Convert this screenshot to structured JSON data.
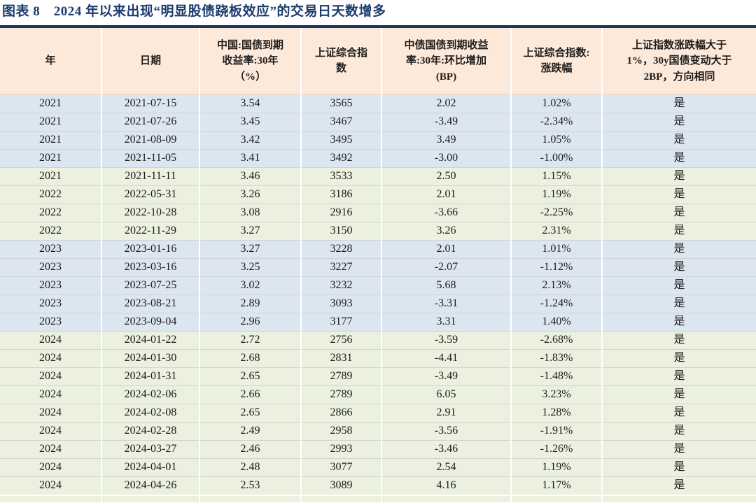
{
  "title": "图表 8　2024 年以来出现“明显股债跷板效应”的交易日天数增多",
  "colors": {
    "title_text": "#1c3c6d",
    "table_top_border": "#17375d",
    "header_bg": "#fde9d9",
    "band_blue_bg": "#dce6f1",
    "band_green_bg": "#ebf1de",
    "gridline": "#d2d2d2",
    "cell_text": "#1c1c1c"
  },
  "table": {
    "columns": [
      {
        "label": "年"
      },
      {
        "label": "日期"
      },
      {
        "label": "中国:国债到期\n收益率:30年\n（%）"
      },
      {
        "label": "上证综合指\n数"
      },
      {
        "label": "中债国债到期收益\n率:30年:环比增加\n(BP)"
      },
      {
        "label": "上证综合指数:\n涨跌幅"
      },
      {
        "label": "上证指数涨跌幅大于\n1%，30y国债变动大于\n2BP，方向相同"
      }
    ],
    "row_bands": [
      "blue",
      "blue",
      "blue",
      "blue",
      "green",
      "green",
      "green",
      "green",
      "blue",
      "blue",
      "blue",
      "blue",
      "blue",
      "green",
      "green",
      "green",
      "green",
      "green",
      "green",
      "green",
      "green",
      "green"
    ]
  },
  "chart_data": {
    "type": "table",
    "title": "图表 8　2024 年以来出现“明显股债跷板效应”的交易日天数增多",
    "columns": [
      "年",
      "日期",
      "中国:国债到期收益率:30年（%）",
      "上证综合指数",
      "中债国债到期收益率:30年:环比增加(BP)",
      "上证综合指数:涨跌幅",
      "上证指数涨跌幅大于1%，30y国债变动大于2BP，方向相同"
    ],
    "rows": [
      [
        "2021",
        "2021-07-15",
        "3.54",
        "3565",
        "2.02",
        "1.02%",
        "是"
      ],
      [
        "2021",
        "2021-07-26",
        "3.45",
        "3467",
        "-3.49",
        "-2.34%",
        "是"
      ],
      [
        "2021",
        "2021-08-09",
        "3.42",
        "3495",
        "3.49",
        "1.05%",
        "是"
      ],
      [
        "2021",
        "2021-11-05",
        "3.41",
        "3492",
        "-3.00",
        "-1.00%",
        "是"
      ],
      [
        "2021",
        "2021-11-11",
        "3.46",
        "3533",
        "2.50",
        "1.15%",
        "是"
      ],
      [
        "2022",
        "2022-05-31",
        "3.26",
        "3186",
        "2.01",
        "1.19%",
        "是"
      ],
      [
        "2022",
        "2022-10-28",
        "3.08",
        "2916",
        "-3.66",
        "-2.25%",
        "是"
      ],
      [
        "2022",
        "2022-11-29",
        "3.27",
        "3150",
        "3.26",
        "2.31%",
        "是"
      ],
      [
        "2023",
        "2023-01-16",
        "3.27",
        "3228",
        "2.01",
        "1.01%",
        "是"
      ],
      [
        "2023",
        "2023-03-16",
        "3.25",
        "3227",
        "-2.07",
        "-1.12%",
        "是"
      ],
      [
        "2023",
        "2023-07-25",
        "3.02",
        "3232",
        "5.68",
        "2.13%",
        "是"
      ],
      [
        "2023",
        "2023-08-21",
        "2.89",
        "3093",
        "-3.31",
        "-1.24%",
        "是"
      ],
      [
        "2023",
        "2023-09-04",
        "2.96",
        "3177",
        "3.31",
        "1.40%",
        "是"
      ],
      [
        "2024",
        "2024-01-22",
        "2.72",
        "2756",
        "-3.59",
        "-2.68%",
        "是"
      ],
      [
        "2024",
        "2024-01-30",
        "2.68",
        "2831",
        "-4.41",
        "-1.83%",
        "是"
      ],
      [
        "2024",
        "2024-01-31",
        "2.65",
        "2789",
        "-3.49",
        "-1.48%",
        "是"
      ],
      [
        "2024",
        "2024-02-06",
        "2.66",
        "2789",
        "6.05",
        "3.23%",
        "是"
      ],
      [
        "2024",
        "2024-02-08",
        "2.65",
        "2866",
        "2.91",
        "1.28%",
        "是"
      ],
      [
        "2024",
        "2024-02-28",
        "2.49",
        "2958",
        "-3.56",
        "-1.91%",
        "是"
      ],
      [
        "2024",
        "2024-03-27",
        "2.46",
        "2993",
        "-3.46",
        "-1.26%",
        "是"
      ],
      [
        "2024",
        "2024-04-01",
        "2.48",
        "3077",
        "2.54",
        "1.19%",
        "是"
      ],
      [
        "2024",
        "2024-04-26",
        "2.53",
        "3089",
        "4.16",
        "1.17%",
        "是"
      ]
    ]
  }
}
